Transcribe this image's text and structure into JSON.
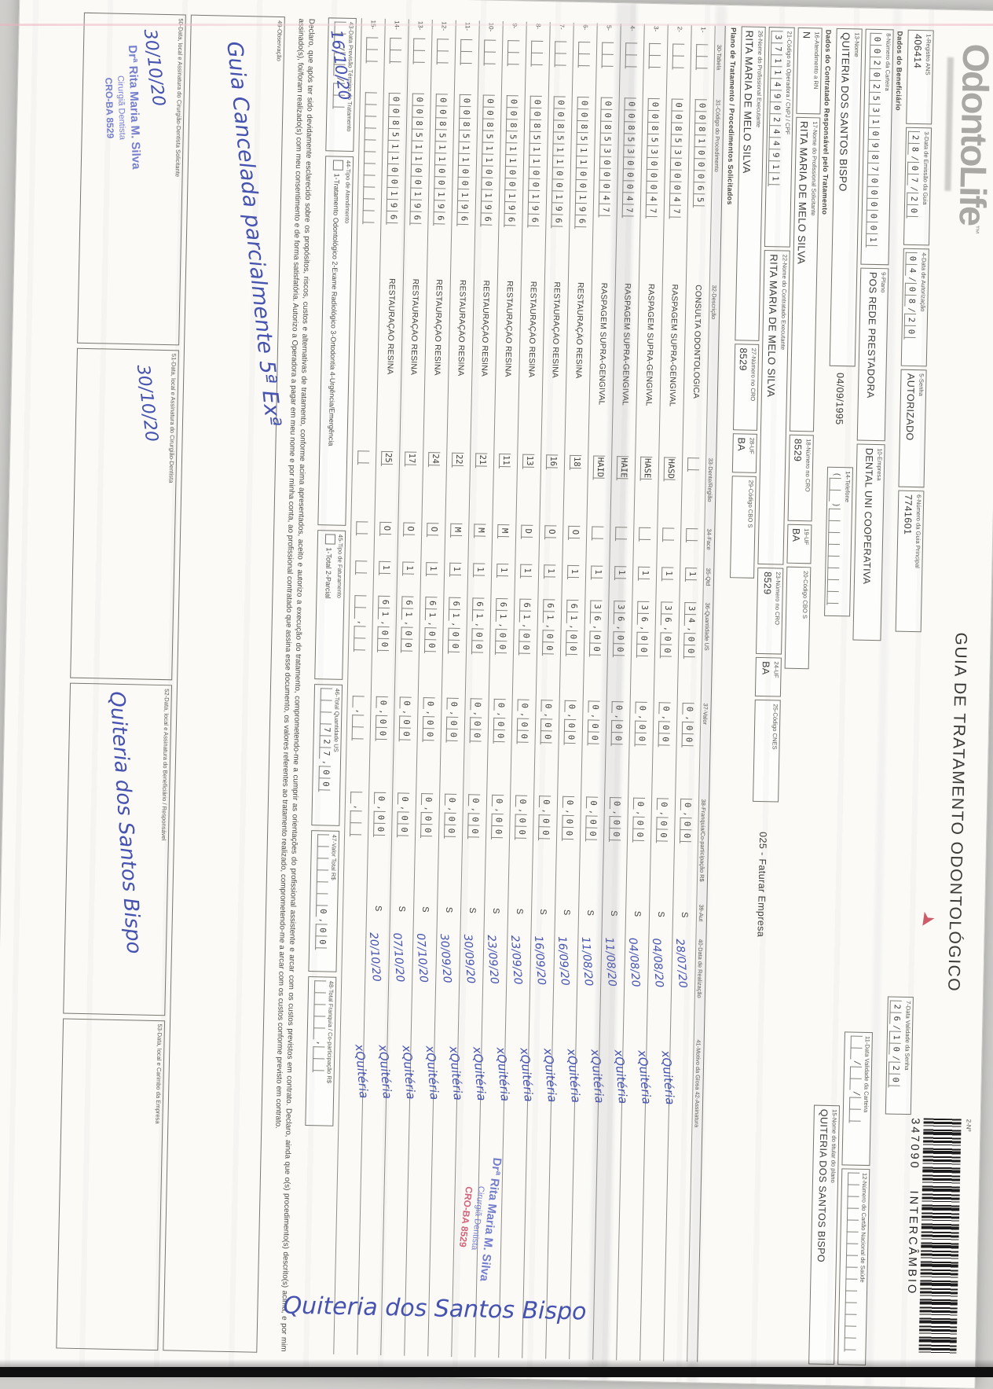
{
  "colors": {
    "ink": "#3f3e3c",
    "pen_blue": "#4552b0",
    "stamp_blue": "#6a74c9",
    "stamp_red": "#cf5570",
    "paper": "#fbfaf7"
  },
  "brand": {
    "logo": "OdontoLife",
    "tm": "™"
  },
  "title": "GUIA DE TRATAMENTO ODONTOLÓGICO",
  "barcode": {
    "label": "2-Nº",
    "number": "347090",
    "subtitle": "INTERCÂMBIO"
  },
  "fields": {
    "f1": {
      "label": "1-Registro ANS",
      "value": "406414"
    },
    "f3": {
      "label": "3-Data de Emissão da Guia",
      "comb": "2 8 / 0 7 / 2 0"
    },
    "f4": {
      "label": "4-Data de Autorização",
      "comb": "0 4 / 0 8 / 2 0"
    },
    "f5": {
      "label": "5-Senha",
      "value": "AUTORIZADO"
    },
    "f6": {
      "label": "6-Número da Guia Principal",
      "value": "7741601"
    },
    "f7": {
      "label": "7-Data Validade da Senha",
      "comb": "2 6 / 1 0 / 2 0"
    },
    "f8": {
      "label": "8-Número da Carteira",
      "comb": "0 0 2 0 2 5 3 1 0 9 8 7 0 0 0 0 0 1"
    },
    "f9": {
      "label": "9-Plano",
      "value": "POS REDE PRESTADORA"
    },
    "f10": {
      "label": "10-Empresa",
      "value": "DENTAL UNI COOPERATIVA"
    },
    "f11": {
      "label": "11-Data Validade da Carteira",
      "comb": "_ _ / _ _ / _ _"
    },
    "f12": {
      "label": "12-Número do Cartão Nacional de Saúde",
      "comb": "_ _ _ _ _ _ _ _ _ _ _ _ _ _ _"
    },
    "f13": {
      "label": "13-Nome",
      "value": "QUITERIA DOS SANTOS BISPO",
      "extra": "04/09/1995"
    },
    "f14": {
      "label": "14-Telefone",
      "comb": "( _ _ ) _ _ _ _ _ _ _ _"
    },
    "f15": {
      "label": "15-Nome do titular do plano",
      "value": "QUITERIA DOS SANTOS BISPO"
    },
    "f16": {
      "label": "16-Atendimento a RN",
      "value": "N"
    },
    "f17": {
      "label": "17-Nome do Profissional Solicitante",
      "value": "RITA MARIA DE MELO SILVA"
    },
    "f18": {
      "label": "18-Número no CRO",
      "value": "8529"
    },
    "f19": {
      "label": "19-UF",
      "value": "BA"
    },
    "f20": {
      "label": "20-Código CBO S",
      "value": ""
    },
    "f21": {
      "label": "21-Código na Operadora / CNPJ / CPF",
      "comb": "3 7 1 1 4 9 0 2 4 4 9 1 1"
    },
    "f22": {
      "label": "22-Nome do Contratado Executante",
      "value": "RITA MARIA DE MELO SILVA"
    },
    "f23": {
      "label": "23-Número no CRO",
      "value": "8529"
    },
    "f24": {
      "label": "24-UF",
      "value": "BA"
    },
    "f25": {
      "label": "25-Código CNES",
      "value": ""
    },
    "f26": {
      "label": "26-Nome do Profissional Executante",
      "value": "RITA MARIA DE MELO SILVA"
    },
    "f27": {
      "label": "27-Número no CRO",
      "value": "8529"
    },
    "f28": {
      "label": "28-UF",
      "value": "BA"
    },
    "f29": {
      "label": "29-Código CBO S",
      "value": ""
    },
    "faturar_note": "025 - Faturar Empresa"
  },
  "sections": {
    "beneficiario": "Dados do Beneficiário",
    "contratado": "Dados do Contratado Responsável pelo Tratamento",
    "plano": "Plano de Tratamento / Procedimentos Solicitados"
  },
  "table": {
    "headers": {
      "h30": "30-Tabela",
      "h31": "31-Código do Procedimento",
      "h32": "32-Descrição",
      "h33": "33-Dente/Região",
      "h34": "34-Face",
      "h35": "35-Qtd",
      "h36": "36-Quantidade US",
      "h37": "37-Valor",
      "h38": "38-Franquia/Co-participação R$",
      "h39": "39-Aut",
      "h40": "40-Data de Realização",
      "h41": "41-Motivo da Glosa   42-Assinatura"
    },
    "rows": [
      {
        "n": "1-",
        "tabela": "_ _",
        "codigo": "0 0 8 1 0 0 0 6 5",
        "descricao": "CONSULTA ODONTOLOGICA",
        "dente": "_",
        "face": "_",
        "qtd": "1",
        "us": "3 4 , 0 0",
        "valor": "0 , 0 0",
        "franquia": "0 , 0 0",
        "aut": "S",
        "data": "28/07/20",
        "assinatura": "xQuitéria"
      },
      {
        "n": "2-",
        "tabela": "_ _",
        "codigo": "0 0 8 5 3 0 0 0 4 7",
        "descricao": "RASPAGEM SUPRA-GENGIVAL",
        "dente": "HASD",
        "face": "_",
        "qtd": "1",
        "us": "3 6 , 0 0",
        "valor": "0 , 0 0",
        "franquia": "0 , 0 0",
        "aut": "S",
        "data": "04/08/20",
        "assinatura": "xQuitéria"
      },
      {
        "n": "3-",
        "tabela": "_ _",
        "codigo": "0 0 8 5 3 0 0 0 4 7",
        "descricao": "RASPAGEM SUPRA-GENGIVAL",
        "dente": "HASE",
        "face": "_",
        "qtd": "1",
        "us": "3 6 , 0 0",
        "valor": "0 , 0 0",
        "franquia": "0 , 0 0",
        "aut": "S",
        "data": "04/08/20",
        "assinatura": "xQuitéria"
      },
      {
        "n": "4-",
        "tabela": "_ _",
        "codigo": "0 0 8 5 3 0 0 0 4 7",
        "descricao": "RASPAGEM SUPRA-GENGIVAL",
        "dente": "HAIE",
        "face": "_",
        "qtd": "1",
        "us": "3 6 , 0 0",
        "valor": "0 , 0 0",
        "franquia": "0 , 0 0",
        "aut": "S",
        "data": "11/08/20",
        "assinatura": "xQuitéria"
      },
      {
        "n": "5-",
        "tabela": "_ _",
        "codigo": "0 0 8 5 3 0 0 0 4 7",
        "descricao": "RASPAGEM SUPRA-GENGIVAL",
        "dente": "HAID",
        "face": "_",
        "qtd": "1",
        "us": "3 6 , 0 0",
        "valor": "0 , 0 0",
        "franquia": "0 , 0 0",
        "aut": "S",
        "data": "11/08/20",
        "assinatura": "xQuitéria"
      },
      {
        "n": "6-",
        "tabela": "_ _",
        "codigo": "0 0 8 5 1 1 0 0 1 9 6",
        "descricao": "RESTAURAÇÃO RESINA",
        "dente": "18",
        "face": "O",
        "qtd": "1",
        "us": "6 1 , 0 0",
        "valor": "0 , 0 0",
        "franquia": "0 , 0 0",
        "aut": "S",
        "data": "16/09/20",
        "assinatura": "xQuitéria"
      },
      {
        "n": "7-",
        "tabela": "_ _",
        "codigo": "0 0 8 5 1 1 0 0 1 9 6",
        "descricao": "RESTAURAÇÃO RESINA",
        "dente": "16",
        "face": "O",
        "qtd": "1",
        "us": "6 1 , 0 0",
        "valor": "0 , 0 0",
        "franquia": "0 , 0 0",
        "aut": "S",
        "data": "16/09/20",
        "assinatura": "xQuitéria"
      },
      {
        "n": "8-",
        "tabela": "_ _",
        "codigo": "0 0 8 5 1 1 0 0 1 9 6",
        "descricao": "RESTAURAÇÃO RESINA",
        "dente": "13",
        "face": "D",
        "qtd": "1",
        "us": "6 1 , 0 0",
        "valor": "0 , 0 0",
        "franquia": "0 , 0 0",
        "aut": "S",
        "data": "23/09/20",
        "assinatura": "xQuitéria"
      },
      {
        "n": "9-",
        "tabela": "_ _",
        "codigo": "0 0 8 5 1 1 0 0 1 9 6",
        "descricao": "RESTAURAÇÃO RESINA",
        "dente": "11",
        "face": "M",
        "qtd": "1",
        "us": "6 1 , 0 0",
        "valor": "0 , 0 0",
        "franquia": "0 , 0 0",
        "aut": "S",
        "data": "23/09/20",
        "assinatura": "xQuitéria"
      },
      {
        "n": "10-",
        "tabela": "_ _",
        "codigo": "0 0 8 5 1 1 0 0 1 9 6",
        "descricao": "RESTAURAÇÃO RESINA",
        "dente": "21",
        "face": "M",
        "qtd": "1",
        "us": "6 1 , 0 0",
        "valor": "0 , 0 0",
        "franquia": "0 , 0 0",
        "aut": "S",
        "data": "30/09/20",
        "assinatura": "xQuitéria"
      },
      {
        "n": "11-",
        "tabela": "_ _",
        "codigo": "0 0 8 5 1 1 0 0 1 9 6",
        "descricao": "RESTAURAÇÃO RESINA",
        "dente": "22",
        "face": "M",
        "qtd": "1",
        "us": "6 1 , 0 0",
        "valor": "0 , 0 0",
        "franquia": "0 , 0 0",
        "aut": "S",
        "data": "30/09/20",
        "assinatura": "xQuitéria"
      },
      {
        "n": "12-",
        "tabela": "_ _",
        "codigo": "0 0 8 5 1 1 0 0 1 9 6",
        "descricao": "RESTAURAÇÃO RESINA",
        "dente": "24",
        "face": "O",
        "qtd": "1",
        "us": "6 1 , 0 0",
        "valor": "0 , 0 0",
        "franquia": "0 , 0 0",
        "aut": "S",
        "data": "07/10/20",
        "assinatura": "xQuitéria"
      },
      {
        "n": "13-",
        "tabela": "_ _",
        "codigo": "0 0 8 5 1 1 0 0 1 9 6",
        "descricao": "RESTAURAÇÃO RESINA",
        "dente": "17",
        "face": "O",
        "qtd": "1",
        "us": "6 1 , 0 0",
        "valor": "0 , 0 0",
        "franquia": "0 , 0 0",
        "aut": "S",
        "data": "07/10/20",
        "assinatura": "xQuitéria"
      },
      {
        "n": "14-",
        "tabela": "_ _",
        "codigo": "0 0 8 5 1 1 0 0 1 9 6",
        "descricao": "RESTAURAÇÃO RESINA",
        "dente": "25",
        "face": "O",
        "qtd": "1",
        "us": "6 1 , 0 0",
        "valor": "0 , 0 0",
        "franquia": "0 , 0 0",
        "aut": "S",
        "data": "20/10/20",
        "assinatura": "xQuitéria"
      },
      {
        "n": "15-",
        "tabela": "_ _",
        "codigo": "_ _ _ _ _ _ _ _ _ _ _",
        "descricao": "",
        "dente": "_",
        "face": "_",
        "qtd": "_",
        "us": "_ _ , _ _",
        "valor": "_ , _ _",
        "franquia": "_ , _ _",
        "aut": "",
        "data": "",
        "assinatura": ""
      }
    ]
  },
  "footer": {
    "f43": {
      "label": "43-Data Previsão Término do Tratamento",
      "comb": "_ _ / _ _ / _ _",
      "hw": "16/10/20"
    },
    "f44": {
      "label": "44-Tipo de Atendimento",
      "options": "1-Tratamento Odontológico   2-Exame Radiológico   3-Ortodontia   4-Urgência/Emergência"
    },
    "f45": {
      "label": "45-Tipo de Faturamento",
      "options": "1-Total   2-Parcial"
    },
    "f46": {
      "label": "46-Total Quantidade US",
      "comb": "_ _ _ 7 2 7 , 0 0"
    },
    "f47": {
      "label": "47-Valor Total R$",
      "comb": "_ _ _ _ _ _ 0 , 0 0"
    },
    "f48": {
      "label": "48-Total Franquia / Co-participação R$",
      "comb": "_ _ _ _ _ , _ _"
    },
    "declaration": "Declaro, que após ter sido devidamente esclarecido sobre os propósitos, riscos, custos e alternativas de tratamento, conforme acima apresentados, aceito e autorizo a execução do tratamento, comprometendo-me a cumprir as orientações do profissional assistente e arcar com os custos previstos em contrato. Declaro, ainda que o(s) procedimento(s) descrito(s) acima, e por mim assinado(s), foi/foram realizado(s) com meu consentimento e de forma satisfatória. Autorizo a Operadora a pagar em meu nome e por minha conta, ao profissional contratado que assina esse documento, os valores referentes ao tratamento realizado, comprometendo-me a arcar com os custos conforme previsto em contrato.",
    "f49": {
      "label": "49-Observação",
      "hw": "Guia Cancelada parcialmente 5ª Exª"
    },
    "f50": {
      "label": "50-Data, local e Assinatura do Cirurgião-Dentista Solicitante",
      "hw": "30/10/20"
    },
    "f51": {
      "label": "51-Data, local e Assinatura do Cirurgião-Dentista",
      "hw": "30/10/20"
    },
    "f52": {
      "label": "52-Data, local e Assinatura do Beneficiário / Responsável",
      "hw": "Quiteria dos Santos Bispo"
    },
    "f53": {
      "label": "53-Data, local e Carimbo da Empresa"
    },
    "stamp": {
      "line1": "Drª Rita Maria M. Silva",
      "line2": "Cirurgiã Dentista",
      "line3": "CRO-BA 8529"
    },
    "vertical_signature": "Quiteria dos Santos Bispo"
  }
}
